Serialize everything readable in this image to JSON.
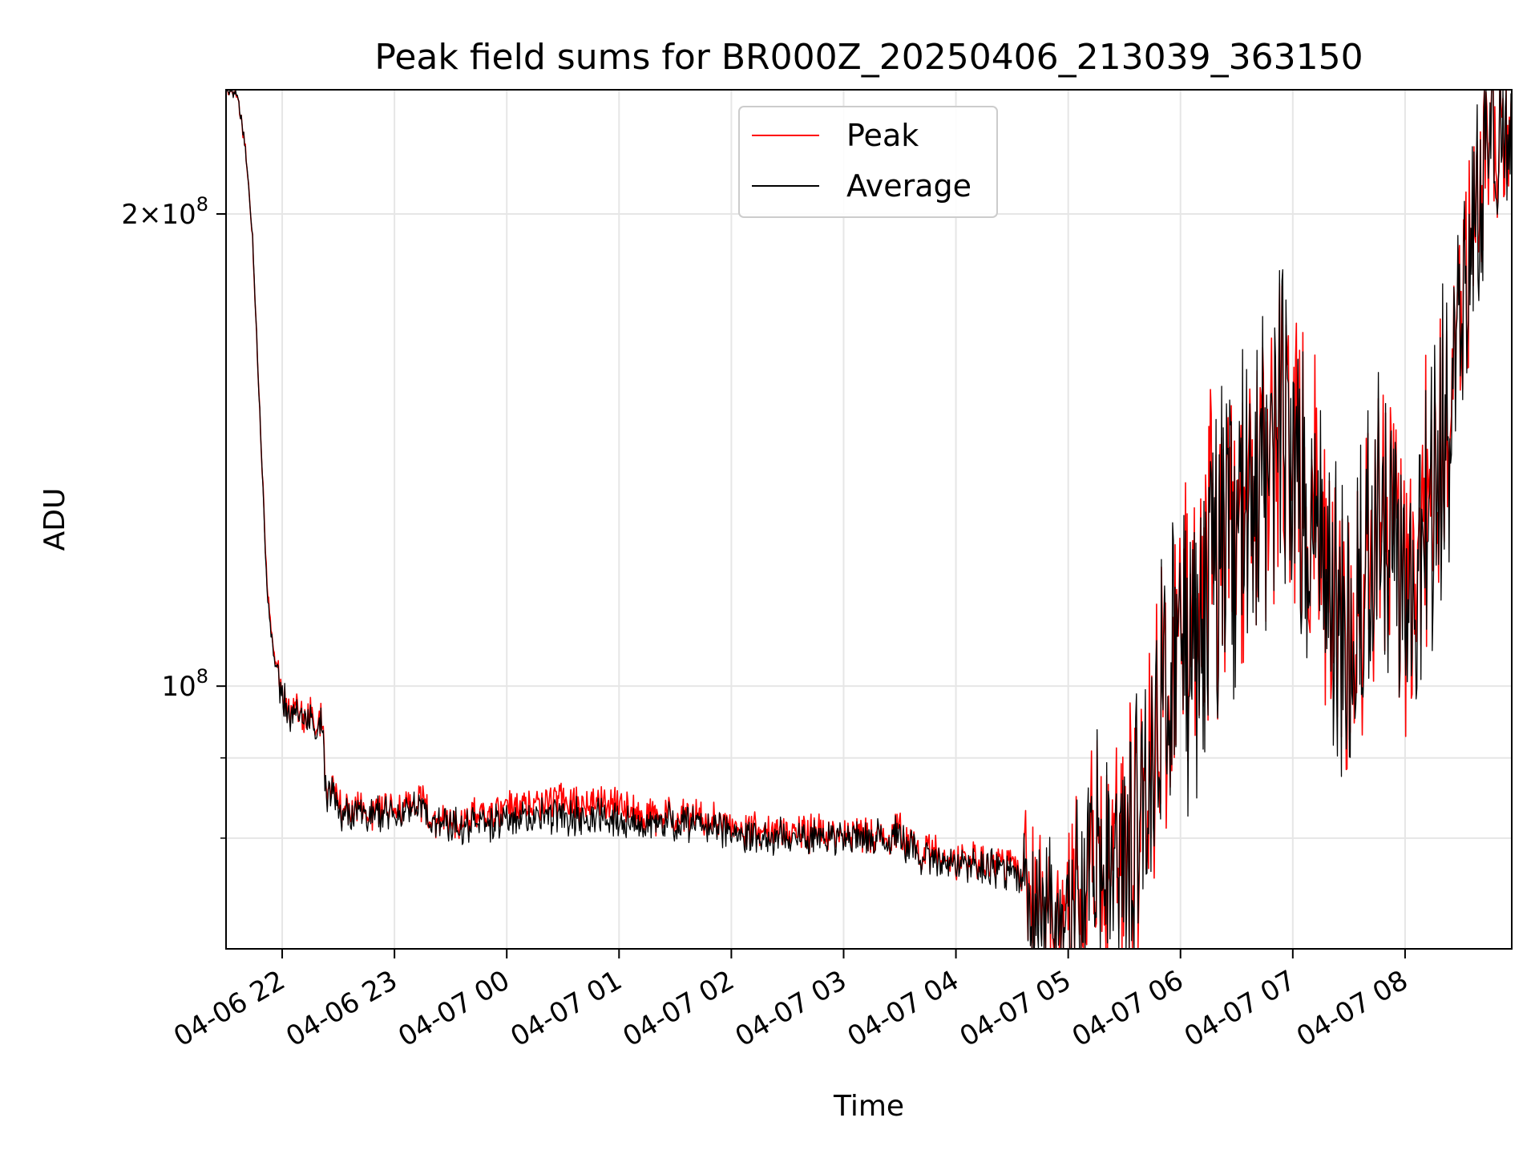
{
  "chart_data": {
    "type": "line",
    "title": "Peak field sums for BR000Z_20250406_213039_363150",
    "xlabel": "Time",
    "ylabel": "ADU",
    "y_scale": "log",
    "ylim": [
      68000000,
      240000000
    ],
    "xlim": [
      "2025-04-06 21:30",
      "2025-04-07 08:57"
    ],
    "grid": true,
    "legend_position": "top-center",
    "x_ticks": [
      {
        "value": "2025-04-06 22:00",
        "label": "04-06 22"
      },
      {
        "value": "2025-04-06 23:00",
        "label": "04-06 23"
      },
      {
        "value": "2025-04-07 00:00",
        "label": "04-07 00"
      },
      {
        "value": "2025-04-07 01:00",
        "label": "04-07 01"
      },
      {
        "value": "2025-04-07 02:00",
        "label": "04-07 02"
      },
      {
        "value": "2025-04-07 03:00",
        "label": "04-07 03"
      },
      {
        "value": "2025-04-07 04:00",
        "label": "04-07 04"
      },
      {
        "value": "2025-04-07 05:00",
        "label": "04-07 05"
      },
      {
        "value": "2025-04-07 06:00",
        "label": "04-07 06"
      },
      {
        "value": "2025-04-07 07:00",
        "label": "04-07 07"
      },
      {
        "value": "2025-04-07 08:00",
        "label": "04-07 08"
      }
    ],
    "y_major_ticks": [
      {
        "value": 100000000,
        "base": "10",
        "exp": "8",
        "mantissa": ""
      },
      {
        "value": 200000000,
        "base": "10",
        "exp": "8",
        "mantissa": "2"
      }
    ],
    "y_minor_ticks": [
      80000000,
      90000000
    ],
    "series": [
      {
        "name": "Peak",
        "color": "#ff0000",
        "points": [
          [
            "2025-04-06 21:30",
            240000000
          ],
          [
            "2025-04-06 21:36",
            238000000
          ],
          [
            "2025-04-06 21:40",
            222000000
          ],
          [
            "2025-04-06 21:44",
            195000000
          ],
          [
            "2025-04-06 21:48",
            150000000
          ],
          [
            "2025-04-06 21:52",
            115000000
          ],
          [
            "2025-04-06 21:56",
            104000000
          ],
          [
            "2025-04-06 22:00",
            99000000
          ],
          [
            "2025-04-06 22:04",
            96500000
          ],
          [
            "2025-04-06 22:15",
            95500000
          ],
          [
            "2025-04-06 22:22",
            95000000
          ],
          [
            "2025-04-06 22:23",
            86000000
          ],
          [
            "2025-04-06 22:27",
            86500000
          ],
          [
            "2025-04-06 22:30",
            83500000
          ],
          [
            "2025-04-06 22:45",
            83000000
          ],
          [
            "2025-04-06 23:00",
            83500000
          ],
          [
            "2025-04-06 23:15",
            84000000
          ],
          [
            "2025-04-06 23:20",
            82000000
          ],
          [
            "2025-04-06 23:40",
            82500000
          ],
          [
            "2025-04-07 00:00",
            83500000
          ],
          [
            "2025-04-07 00:30",
            84500000
          ],
          [
            "2025-04-07 01:00",
            84500000
          ],
          [
            "2025-04-07 01:15",
            82500000
          ],
          [
            "2025-04-07 01:45",
            82500000
          ],
          [
            "2025-04-07 02:00",
            81500000
          ],
          [
            "2025-04-07 02:30",
            80800000
          ],
          [
            "2025-04-07 03:00",
            80300000
          ],
          [
            "2025-04-07 03:30",
            80600000
          ],
          [
            "2025-04-07 03:40",
            78500000
          ],
          [
            "2025-04-07 04:00",
            77500000
          ],
          [
            "2025-04-07 04:30",
            77000000
          ],
          [
            "2025-04-07 04:45",
            72000000
          ],
          [
            "2025-04-07 05:00",
            71000000
          ],
          [
            "2025-04-07 05:15",
            79000000
          ],
          [
            "2025-04-07 05:30",
            76000000
          ],
          [
            "2025-04-07 05:45",
            92000000
          ],
          [
            "2025-04-07 06:00",
            108000000
          ],
          [
            "2025-04-07 06:20",
            122000000
          ],
          [
            "2025-04-07 06:40",
            132000000
          ],
          [
            "2025-04-07 06:55",
            149000000
          ],
          [
            "2025-04-07 07:10",
            128000000
          ],
          [
            "2025-04-07 07:30",
            106000000
          ],
          [
            "2025-04-07 07:45",
            128000000
          ],
          [
            "2025-04-07 08:00",
            116000000
          ],
          [
            "2025-04-07 08:15",
            136000000
          ],
          [
            "2025-04-07 08:30",
            175000000
          ],
          [
            "2025-04-07 08:45",
            225000000
          ],
          [
            "2025-04-07 08:56",
            240000000
          ]
        ]
      },
      {
        "name": "Average",
        "color": "#000000",
        "points": [
          [
            "2025-04-06 21:30",
            240000000
          ],
          [
            "2025-04-06 21:36",
            238000000
          ],
          [
            "2025-04-06 21:40",
            222000000
          ],
          [
            "2025-04-06 21:44",
            195000000
          ],
          [
            "2025-04-06 21:48",
            150000000
          ],
          [
            "2025-04-06 21:52",
            114000000
          ],
          [
            "2025-04-06 21:56",
            103500000
          ],
          [
            "2025-04-06 22:00",
            98500000
          ],
          [
            "2025-04-06 22:04",
            96000000
          ],
          [
            "2025-04-06 22:15",
            95000000
          ],
          [
            "2025-04-06 22:22",
            94500000
          ],
          [
            "2025-04-06 22:23",
            85500000
          ],
          [
            "2025-04-06 22:27",
            85500000
          ],
          [
            "2025-04-06 22:30",
            83000000
          ],
          [
            "2025-04-06 22:45",
            82700000
          ],
          [
            "2025-04-06 23:00",
            83000000
          ],
          [
            "2025-04-06 23:15",
            83200000
          ],
          [
            "2025-04-06 23:20",
            81800000
          ],
          [
            "2025-04-06 23:40",
            81700000
          ],
          [
            "2025-04-07 00:00",
            82000000
          ],
          [
            "2025-04-07 00:30",
            82700000
          ],
          [
            "2025-04-07 01:00",
            82500000
          ],
          [
            "2025-04-07 01:15",
            81800000
          ],
          [
            "2025-04-07 01:45",
            81800000
          ],
          [
            "2025-04-07 02:00",
            80800000
          ],
          [
            "2025-04-07 02:30",
            80200000
          ],
          [
            "2025-04-07 03:00",
            79900000
          ],
          [
            "2025-04-07 03:30",
            80200000
          ],
          [
            "2025-04-07 03:40",
            78000000
          ],
          [
            "2025-04-07 04:00",
            77000000
          ],
          [
            "2025-04-07 04:30",
            76200000
          ],
          [
            "2025-04-07 04:45",
            71500000
          ],
          [
            "2025-04-07 05:00",
            70300000
          ],
          [
            "2025-04-07 05:15",
            77500000
          ],
          [
            "2025-04-07 05:30",
            75000000
          ],
          [
            "2025-04-07 05:45",
            90000000
          ],
          [
            "2025-04-07 06:00",
            106000000
          ],
          [
            "2025-04-07 06:20",
            120000000
          ],
          [
            "2025-04-07 06:40",
            130000000
          ],
          [
            "2025-04-07 06:55",
            147000000
          ],
          [
            "2025-04-07 07:10",
            126000000
          ],
          [
            "2025-04-07 07:30",
            104000000
          ],
          [
            "2025-04-07 07:45",
            126000000
          ],
          [
            "2025-04-07 08:00",
            114000000
          ],
          [
            "2025-04-07 08:15",
            134000000
          ],
          [
            "2025-04-07 08:30",
            172000000
          ],
          [
            "2025-04-07 08:45",
            223000000
          ],
          [
            "2025-04-07 08:56",
            240000000
          ]
        ]
      }
    ]
  }
}
